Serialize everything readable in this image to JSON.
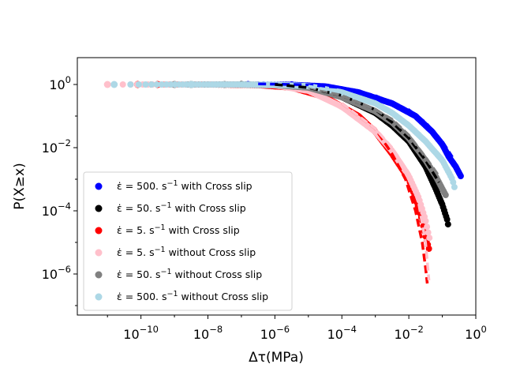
{
  "chart_data": {
    "type": "scatter",
    "title": "",
    "xlabel": "Δτ(MPa)",
    "ylabel": "P(X≥x)",
    "xscale": "log",
    "yscale": "log",
    "xlim_log10": [
      -11.9,
      0.0
    ],
    "ylim_log10": [
      -7.3,
      0.85
    ],
    "xticks": [
      {
        "base": "10",
        "exp": "−10",
        "value_log10": -10
      },
      {
        "base": "10",
        "exp": "−8",
        "value_log10": -8
      },
      {
        "base": "10",
        "exp": "−6",
        "value_log10": -6
      },
      {
        "base": "10",
        "exp": "−4",
        "value_log10": -4
      },
      {
        "base": "10",
        "exp": "−2",
        "value_log10": -2
      },
      {
        "base": "10",
        "exp": "0",
        "value_log10": 0
      }
    ],
    "yticks": [
      {
        "base": "10",
        "exp": "0",
        "value_log10": 0
      },
      {
        "base": "10",
        "exp": "−2",
        "value_log10": -2
      },
      {
        "base": "10",
        "exp": "−4",
        "value_log10": -4
      },
      {
        "base": "10",
        "exp": "−6",
        "value_log10": -6
      }
    ],
    "legend_position": "lower-left",
    "series": [
      {
        "name": "500 with Cross slip",
        "legend_prefix": "ε̇ = 500. s",
        "legend_exp": "−1",
        "legend_suffix": " with Cross slip",
        "color": "#0000ff",
        "points": [
          [
            -6.8,
            0
          ],
          [
            -5.5,
            -0.01
          ],
          [
            -4.5,
            -0.06
          ],
          [
            -3.5,
            -0.25
          ],
          [
            -2.5,
            -0.6
          ],
          [
            -1.8,
            -1.0
          ],
          [
            -1.3,
            -1.5
          ],
          [
            -1.0,
            -1.9
          ],
          [
            -0.8,
            -2.3
          ],
          [
            -0.6,
            -2.6
          ],
          [
            -0.45,
            -2.9
          ]
        ],
        "fit": [
          [
            -6.5,
            0.02
          ],
          [
            -5.0,
            -0.01
          ],
          [
            -4.0,
            -0.1
          ],
          [
            -3.0,
            -0.35
          ],
          [
            -2.0,
            -0.8
          ],
          [
            -1.5,
            -1.2
          ],
          [
            -1.0,
            -1.8
          ],
          [
            -0.7,
            -2.3
          ]
        ]
      },
      {
        "name": "50 with Cross slip",
        "legend_prefix": "ε̇ = 50. s",
        "legend_exp": "−1",
        "legend_suffix": " with Cross slip",
        "color": "#000000",
        "points": [
          [
            -8.5,
            0
          ],
          [
            -7.0,
            0
          ],
          [
            -6.0,
            -0.02
          ],
          [
            -5.0,
            -0.1
          ],
          [
            -4.0,
            -0.4
          ],
          [
            -3.0,
            -0.9
          ],
          [
            -2.5,
            -1.3
          ],
          [
            -2.0,
            -1.8
          ],
          [
            -1.5,
            -2.6
          ],
          [
            -1.2,
            -3.3
          ],
          [
            -1.0,
            -3.8
          ],
          [
            -0.85,
            -4.3
          ],
          [
            -0.8,
            -4.6
          ]
        ],
        "fit": [
          [
            -6.0,
            0
          ],
          [
            -5.0,
            -0.1
          ],
          [
            -4.0,
            -0.35
          ],
          [
            -3.0,
            -0.8
          ],
          [
            -2.5,
            -1.2
          ],
          [
            -2.0,
            -1.7
          ],
          [
            -1.5,
            -2.4
          ],
          [
            -1.1,
            -3.1
          ]
        ]
      },
      {
        "name": "5 with Cross slip",
        "legend_prefix": "ε̇ = 5. s",
        "legend_exp": "−1",
        "legend_suffix": " with Cross slip",
        "color": "#ff0000",
        "points": [
          [
            -10.1,
            0
          ],
          [
            -9.5,
            0
          ],
          [
            -8.0,
            0
          ],
          [
            -6.5,
            -0.02
          ],
          [
            -5.5,
            -0.1
          ],
          [
            -4.5,
            -0.4
          ],
          [
            -3.5,
            -1.0
          ],
          [
            -3.0,
            -1.5
          ],
          [
            -2.5,
            -2.2
          ],
          [
            -2.0,
            -3.0
          ],
          [
            -1.8,
            -3.6
          ],
          [
            -1.6,
            -4.3
          ],
          [
            -1.5,
            -4.8
          ],
          [
            -1.4,
            -5.2
          ]
        ],
        "fit": [
          [
            -4.0,
            -0.6
          ],
          [
            -3.0,
            -1.4
          ],
          [
            -2.5,
            -2.2
          ],
          [
            -2.1,
            -3.0
          ],
          [
            -1.8,
            -4.0
          ],
          [
            -1.6,
            -5.0
          ],
          [
            -1.5,
            -5.8
          ],
          [
            -1.45,
            -6.3
          ]
        ]
      },
      {
        "name": "5 without Cross slip",
        "legend_prefix": "ε̇ = 5. s",
        "legend_exp": "−1",
        "legend_suffix": " without Cross slip",
        "color": "#ffc0cb",
        "points": [
          [
            -11.0,
            0
          ],
          [
            -9.0,
            0
          ],
          [
            -7.5,
            0
          ],
          [
            -6.0,
            -0.03
          ],
          [
            -5.0,
            -0.2
          ],
          [
            -4.0,
            -0.7
          ],
          [
            -3.0,
            -1.5
          ],
          [
            -2.5,
            -2.1
          ],
          [
            -2.0,
            -2.9
          ],
          [
            -1.7,
            -3.6
          ],
          [
            -1.5,
            -4.3
          ],
          [
            -1.4,
            -4.8
          ],
          [
            -1.35,
            -5.0
          ]
        ],
        "fit": [
          [
            -4.0,
            -0.6
          ],
          [
            -3.0,
            -1.4
          ],
          [
            -2.5,
            -2.0
          ],
          [
            -2.0,
            -2.8
          ],
          [
            -1.7,
            -3.8
          ],
          [
            -1.5,
            -5.0
          ],
          [
            -1.4,
            -6.2
          ]
        ]
      },
      {
        "name": "50 without Cross slip",
        "legend_prefix": "ε̇ = 50. s",
        "legend_exp": "−1",
        "legend_suffix": " without Cross slip",
        "color": "#808080",
        "points": [
          [
            -9.0,
            0
          ],
          [
            -7.5,
            0
          ],
          [
            -6.0,
            -0.02
          ],
          [
            -5.0,
            -0.1
          ],
          [
            -4.0,
            -0.4
          ],
          [
            -3.0,
            -0.85
          ],
          [
            -2.5,
            -1.2
          ],
          [
            -2.0,
            -1.7
          ],
          [
            -1.5,
            -2.4
          ],
          [
            -1.2,
            -2.9
          ],
          [
            -0.9,
            -3.5
          ]
        ],
        "fit": [
          [
            -5.0,
            -0.08
          ],
          [
            -4.0,
            -0.35
          ],
          [
            -3.0,
            -0.8
          ],
          [
            -2.5,
            -1.1
          ],
          [
            -2.0,
            -1.6
          ],
          [
            -1.5,
            -2.3
          ],
          [
            -1.1,
            -2.9
          ]
        ]
      },
      {
        "name": "500 without Cross slip",
        "legend_prefix": "ε̇ = 500. s",
        "legend_exp": "−1",
        "legend_suffix": " without Cross slip",
        "color": "#add8e6",
        "points": [
          [
            -10.8,
            0
          ],
          [
            -8.5,
            0
          ],
          [
            -7.0,
            0
          ],
          [
            -6.0,
            -0.01
          ],
          [
            -5.0,
            -0.05
          ],
          [
            -4.0,
            -0.25
          ],
          [
            -3.0,
            -0.6
          ],
          [
            -2.5,
            -0.9
          ],
          [
            -2.0,
            -1.3
          ],
          [
            -1.5,
            -1.8
          ],
          [
            -1.0,
            -2.4
          ],
          [
            -0.7,
            -3.0
          ],
          [
            -0.6,
            -3.4
          ]
        ],
        "fit": [
          [
            -5.0,
            -0.05
          ],
          [
            -4.0,
            -0.25
          ],
          [
            -3.0,
            -0.6
          ],
          [
            -2.0,
            -1.3
          ],
          [
            -1.5,
            -1.8
          ],
          [
            -1.0,
            -2.4
          ]
        ]
      }
    ]
  }
}
